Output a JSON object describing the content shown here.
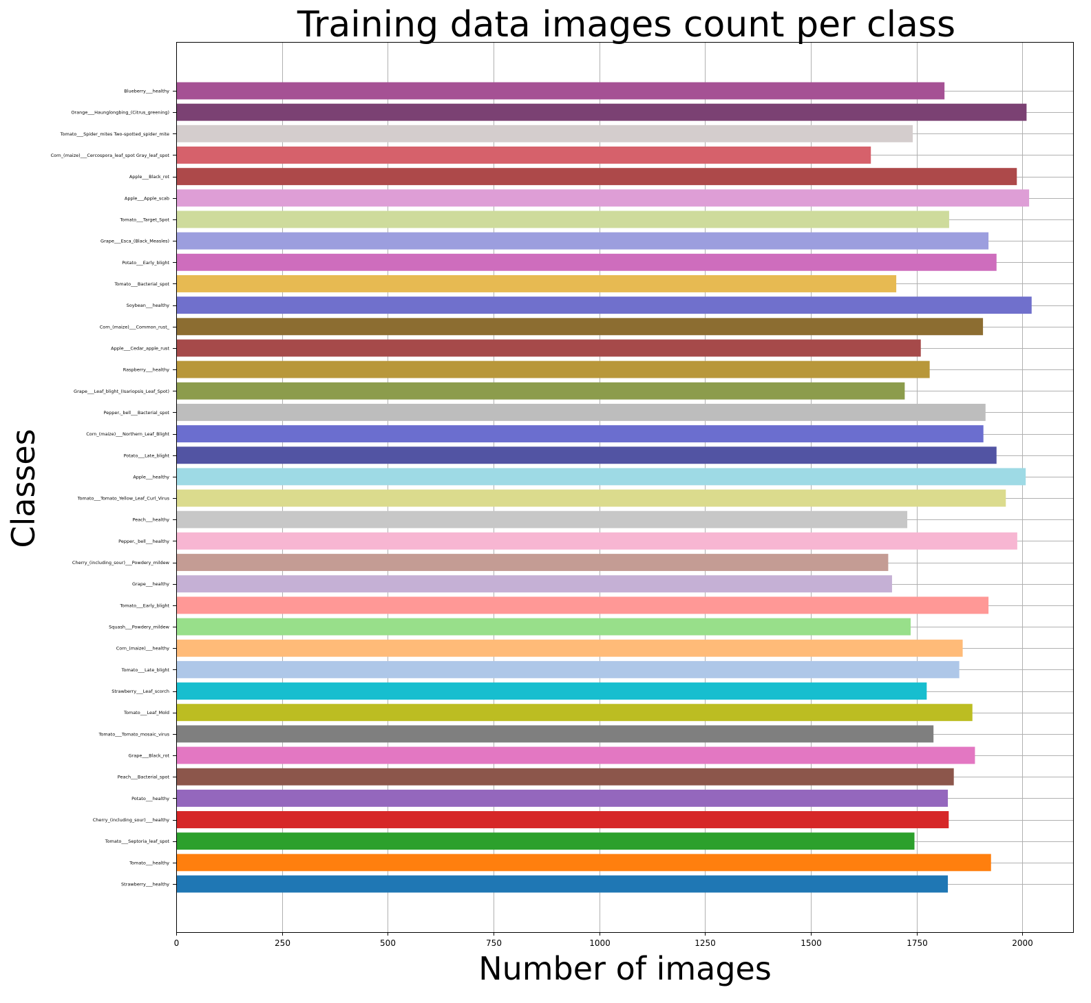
{
  "chart_data": {
    "type": "bar",
    "orientation": "horizontal",
    "title": "Training data images count per class",
    "xlabel": "Number of images",
    "ylabel": "Classes",
    "xlim": [
      0,
      2120
    ],
    "xticks": [
      0,
      250,
      500,
      750,
      1000,
      1250,
      1500,
      1750,
      2000
    ],
    "grid": true,
    "categories": [
      "Strawberry___healthy",
      "Tomato___healthy",
      "Tomato___Septoria_leaf_spot",
      "Cherry_(including_sour)___healthy",
      "Potato___healthy",
      "Peach___Bacterial_spot",
      "Grape___Black_rot",
      "Tomato___Tomato_mosaic_virus",
      "Tomato___Leaf_Mold",
      "Strawberry___Leaf_scorch",
      "Tomato___Late_blight",
      "Corn_(maize)___healthy",
      "Squash___Powdery_mildew",
      "Tomato___Early_blight",
      "Grape___healthy",
      "Cherry_(including_sour)___Powdery_mildew",
      "Pepper,_bell___healthy",
      "Peach___healthy",
      "Tomato___Tomato_Yellow_Leaf_Curl_Virus",
      "Apple___healthy",
      "Potato___Late_blight",
      "Corn_(maize)___Northern_Leaf_Blight",
      "Pepper,_bell___Bacterial_spot",
      "Grape___Leaf_blight_(Isariopsis_Leaf_Spot)",
      "Raspberry___healthy",
      "Apple___Cedar_apple_rust",
      "Corn_(maize)___Common_rust_",
      "Soybean___healthy",
      "Tomato___Bacterial_spot",
      "Potato___Early_blight",
      "Grape___Esca_(Black_Measles)",
      "Tomato___Target_Spot",
      "Apple___Apple_scab",
      "Apple___Black_rot",
      "Corn_(maize)___Cercospora_leaf_spot Gray_leaf_spot",
      "Tomato___Spider_mites Two-spotted_spider_mite",
      "Orange___Haunglongbing_(Citrus_greening)",
      "Blueberry___healthy"
    ],
    "values": [
      1824,
      1926,
      1745,
      1826,
      1824,
      1838,
      1888,
      1790,
      1882,
      1774,
      1851,
      1859,
      1736,
      1920,
      1692,
      1683,
      1988,
      1728,
      1961,
      2008,
      1939,
      1908,
      1913,
      1722,
      1781,
      1760,
      1907,
      2022,
      1702,
      1939,
      1920,
      1827,
      2016,
      1987,
      1642,
      1741,
      2010,
      1816
    ],
    "colors": [
      "#1f77b4",
      "#ff7f0e",
      "#2ca02c",
      "#d62728",
      "#9467bd",
      "#8c564b",
      "#e377c2",
      "#7f7f7f",
      "#bcbd22",
      "#17becf",
      "#aec7e8",
      "#ffbb78",
      "#98df8a",
      "#ff9896",
      "#c5b0d5",
      "#c49c94",
      "#f7b6d2",
      "#c7c7c7",
      "#dbdb8d",
      "#9edae5",
      "#5254a3",
      "#6b6ecf",
      "#bdbdbd",
      "#8c9c4c",
      "#b8973a",
      "#a64a4a",
      "#8c6d31",
      "#7070cc",
      "#e7ba52",
      "#ce6dbd",
      "#9c9ede",
      "#cedb9c",
      "#de9ed6",
      "#ad494a",
      "#d6616b",
      "#d4cdcd",
      "#7b4173",
      "#a55194"
    ]
  }
}
